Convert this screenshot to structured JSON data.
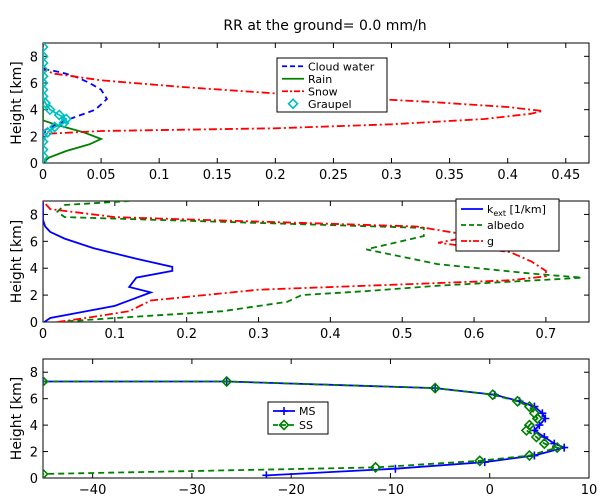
{
  "chart_data": [
    {
      "type": "line",
      "title": "RR at the ground= 0.0 mm/h",
      "ylabel": "Height [km]",
      "xlim": [
        0,
        0.47
      ],
      "ylim": [
        0,
        9
      ],
      "xticks": [
        "0",
        "0.05",
        "0.1",
        "0.15",
        "0.2",
        "0.25",
        "0.3",
        "0.35",
        "0.4",
        "0.45"
      ],
      "xtick_values": [
        0,
        0.05,
        0.1,
        0.15,
        0.2,
        0.25,
        0.3,
        0.35,
        0.4,
        0.45
      ],
      "yticks": [
        "0",
        "2",
        "4",
        "6",
        "8"
      ],
      "ytick_values": [
        0,
        2,
        4,
        6,
        8
      ],
      "legend_position": "top-center",
      "series": [
        {
          "name": "Cloud water",
          "color": "#0000ff",
          "style": "dashed",
          "marker": "none",
          "x": [
            0,
            0,
            0.002,
            0.02,
            0.045,
            0.055,
            0.05,
            0.04,
            0.03,
            0.02,
            0.01,
            0.004,
            0,
            0
          ],
          "y": [
            0,
            1.5,
            2.5,
            3.2,
            4.0,
            4.8,
            5.5,
            6.0,
            6.4,
            6.7,
            6.9,
            7.0,
            7.1,
            9
          ]
        },
        {
          "name": "Rain",
          "color": "#008000",
          "style": "solid",
          "marker": "none",
          "x": [
            0,
            0.005,
            0.02,
            0.04,
            0.05,
            0.035,
            0.01,
            0,
            0
          ],
          "y": [
            0,
            0.4,
            0.9,
            1.4,
            1.8,
            2.3,
            2.9,
            3.2,
            9
          ]
        },
        {
          "name": "Snow",
          "color": "#ff0000",
          "style": "dashdot",
          "marker": "none",
          "x": [
            0,
            0,
            0.005,
            0.05,
            0.2,
            0.3,
            0.38,
            0.42,
            0.43,
            0.4,
            0.33,
            0.22,
            0.12,
            0.05,
            0.01,
            0,
            0
          ],
          "y": [
            0,
            1.8,
            2.2,
            2.4,
            2.6,
            2.9,
            3.3,
            3.7,
            3.9,
            4.2,
            4.6,
            5.1,
            5.7,
            6.2,
            6.7,
            7.0,
            9
          ]
        },
        {
          "name": "Graupel",
          "color": "#00bfbf",
          "style": "solid",
          "marker": "diamond",
          "x": [
            0,
            0,
            0,
            0,
            0.004,
            0.01,
            0.018,
            0.02,
            0.014,
            0.006,
            0.002,
            0,
            0,
            0,
            0,
            0,
            0,
            0,
            0
          ],
          "y": [
            0,
            0.5,
            1.0,
            1.6,
            2.3,
            2.7,
            3.0,
            3.3,
            3.6,
            4.0,
            4.5,
            5.0,
            5.5,
            6.0,
            6.5,
            7.0,
            7.5,
            8.0,
            8.7
          ]
        }
      ]
    },
    {
      "type": "line",
      "ylabel": "Height [km]",
      "xlim": [
        0,
        0.76
      ],
      "ylim": [
        0,
        9
      ],
      "xticks": [
        "0",
        "0.1",
        "0.2",
        "0.3",
        "0.4",
        "0.5",
        "0.6",
        "0.7"
      ],
      "xtick_values": [
        0,
        0.1,
        0.2,
        0.3,
        0.4,
        0.5,
        0.6,
        0.7
      ],
      "yticks": [
        "0",
        "2",
        "4",
        "6",
        "8"
      ],
      "ytick_values": [
        0,
        2,
        4,
        6,
        8
      ],
      "legend_position": "top-right",
      "series": [
        {
          "name_main": "k",
          "name_sub": "ext",
          "name_rest": " [1/km]",
          "color": "#0000ff",
          "style": "solid",
          "marker": "none",
          "x": [
            0.002,
            0.01,
            0.05,
            0.1,
            0.15,
            0.12,
            0.13,
            0.18,
            0.18,
            0.13,
            0.07,
            0.03,
            0.01,
            0.003,
            0,
            0
          ],
          "y": [
            0,
            0.3,
            0.7,
            1.2,
            2.2,
            2.6,
            3.3,
            3.8,
            4.1,
            4.7,
            5.5,
            6.2,
            6.7,
            7.1,
            7.6,
            9
          ]
        },
        {
          "name": "albedo",
          "color": "#008000",
          "style": "dashed",
          "marker": "none",
          "x": [
            0.02,
            0.1,
            0.25,
            0.34,
            0.36,
            0.45,
            0.55,
            0.65,
            0.72,
            0.75,
            0.68,
            0.55,
            0.45,
            0.53,
            0.53,
            0.03,
            0.02,
            0.03,
            0.12
          ],
          "y": [
            0,
            0.3,
            0.8,
            1.5,
            2.0,
            2.3,
            2.7,
            3.0,
            3.2,
            3.3,
            3.6,
            4.3,
            5.4,
            6.4,
            7.0,
            7.8,
            8.2,
            8.7,
            9.0
          ]
        },
        {
          "name": "g",
          "color": "#ff0000",
          "style": "dashdot",
          "marker": "none",
          "x": [
            0.02,
            0.06,
            0.12,
            0.15,
            0.3,
            0.5,
            0.65,
            0.7,
            0.7,
            0.68,
            0.65,
            0.55,
            0.6,
            0.52,
            0.1,
            0.01,
            0.0
          ],
          "y": [
            0,
            0.3,
            0.8,
            1.6,
            2.4,
            2.8,
            3.1,
            3.4,
            3.8,
            4.5,
            5.2,
            5.9,
            6.4,
            7.1,
            7.8,
            8.4,
            9.0
          ]
        }
      ]
    },
    {
      "type": "line",
      "ylabel": "Height [km]",
      "xlim": [
        -45,
        10
      ],
      "ylim": [
        0,
        9
      ],
      "xticks": [
        "−40",
        "−30",
        "−20",
        "−10",
        "0",
        "10"
      ],
      "xtick_values": [
        -40,
        -30,
        -20,
        -10,
        0,
        10
      ],
      "yticks": [
        "0",
        "2",
        "4",
        "6",
        "8"
      ],
      "ytick_values": [
        0,
        2,
        4,
        6,
        8
      ],
      "legend_position": "center",
      "series": [
        {
          "name": "MS",
          "color": "#0000ff",
          "style": "solid",
          "marker": "plus",
          "x": [
            -45,
            -26.5,
            -5.5,
            0.5,
            3.0,
            4.5,
            5.3,
            5.6,
            5.0,
            4.5,
            5.5,
            6.5,
            7.5,
            4.5,
            -0.5,
            -9.5,
            -22.5
          ],
          "y": [
            7.3,
            7.3,
            6.8,
            6.3,
            5.8,
            5.4,
            4.9,
            4.5,
            4.0,
            3.6,
            3.1,
            2.6,
            2.3,
            1.7,
            1.2,
            0.7,
            0.2
          ]
        },
        {
          "name": "SS",
          "color": "#008000",
          "style": "dashed",
          "marker": "diamond",
          "x": [
            -45,
            -26.5,
            -5.5,
            0.3,
            2.8,
            4.0,
            4.5,
            4.8,
            4.0,
            3.7,
            4.7,
            5.5,
            6.8,
            4.0,
            -1.0,
            -11.5,
            -45
          ],
          "y": [
            7.3,
            7.3,
            6.8,
            6.3,
            5.8,
            5.4,
            4.9,
            4.5,
            4.0,
            3.6,
            3.1,
            2.6,
            2.3,
            1.7,
            1.3,
            0.8,
            0.3
          ]
        }
      ]
    }
  ]
}
